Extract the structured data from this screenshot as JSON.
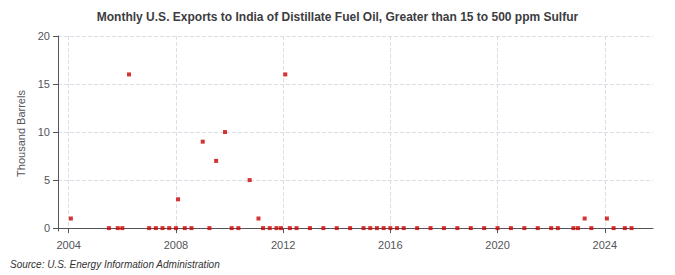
{
  "chart_data": {
    "type": "scatter",
    "title": "Monthly U.S. Exports to India of Distillate Fuel Oil, Greater than 15 to 500 ppm Sulfur",
    "ylabel": "Thousand Barrels",
    "source": "Source: U.S. Energy Information Administration",
    "color": "#cc0000",
    "marker": "square",
    "grid": true,
    "xlim": [
      2003.6,
      2025.8
    ],
    "ylim": [
      -0.3,
      20
    ],
    "xticks": [
      2004,
      2008,
      2012,
      2016,
      2020,
      2024
    ],
    "yticks": [
      0,
      5,
      10,
      15,
      20
    ],
    "x": [
      2004.08,
      2005.5,
      2005.83,
      2006.0,
      2006.25,
      2007.0,
      2007.25,
      2007.5,
      2007.75,
      2008.0,
      2008.08,
      2008.33,
      2008.58,
      2009.0,
      2009.25,
      2009.5,
      2009.83,
      2010.08,
      2010.33,
      2010.75,
      2011.08,
      2011.25,
      2011.5,
      2011.75,
      2011.92,
      2012.08,
      2012.25,
      2012.5,
      2013.0,
      2013.5,
      2014.0,
      2014.5,
      2015.0,
      2015.25,
      2015.5,
      2015.75,
      2016.0,
      2016.25,
      2016.5,
      2017.0,
      2017.5,
      2018.0,
      2018.5,
      2019.0,
      2019.5,
      2020.0,
      2020.5,
      2021.0,
      2021.5,
      2022.0,
      2022.25,
      2022.83,
      2023.0,
      2023.25,
      2023.5,
      2024.08,
      2024.33,
      2024.75,
      2025.0
    ],
    "values": [
      1,
      0,
      0,
      0,
      16,
      0,
      0,
      0,
      0,
      0,
      3,
      0,
      0,
      9,
      0,
      7,
      10,
      0,
      0,
      5,
      1,
      0,
      0,
      0,
      0,
      16,
      0,
      0,
      0,
      0,
      0,
      0,
      0,
      0,
      0,
      0,
      0,
      0,
      0,
      0,
      0,
      0,
      0,
      0,
      0,
      0,
      0,
      0,
      0,
      0,
      0,
      0,
      0,
      1,
      0,
      1,
      0,
      0,
      0
    ]
  }
}
